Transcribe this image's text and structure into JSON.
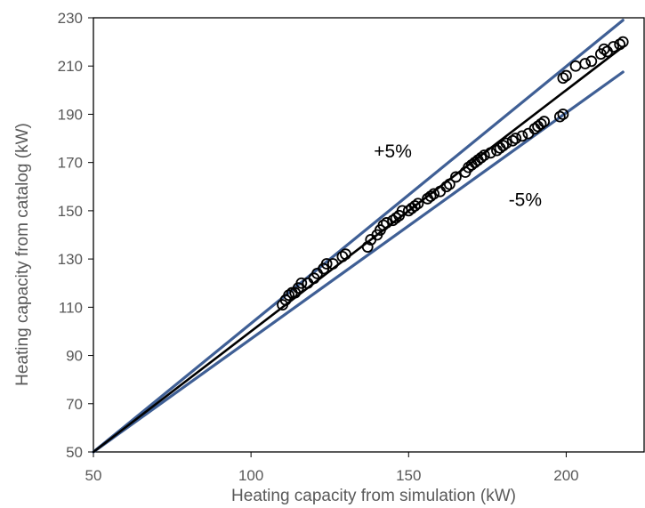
{
  "chart_data": {
    "type": "scatter",
    "title": "",
    "xlabel": "Heating capacity from simulation (kW)",
    "ylabel": "Heating capacity from catalog (kW)",
    "xlim": [
      50,
      225
    ],
    "ylim": [
      50,
      230
    ],
    "x_ticks": [
      "50",
      "100",
      "150",
      "200"
    ],
    "x_tick_values": [
      50,
      100,
      150,
      200
    ],
    "y_ticks": [
      "50",
      "70",
      "90",
      "110",
      "130",
      "150",
      "170",
      "190",
      "210",
      "230"
    ],
    "y_tick_values": [
      50,
      70,
      90,
      110,
      130,
      150,
      170,
      190,
      210,
      230
    ],
    "grid": false,
    "legend": "none",
    "annotations": [
      {
        "text": "+5%",
        "x": 145,
        "y": 172
      },
      {
        "text": "-5%",
        "x": 187,
        "y": 152
      }
    ],
    "reference_lines": [
      {
        "name": "+5%",
        "color": "#3f5f95",
        "points": [
          [
            50,
            50
          ],
          [
            218,
            229
          ]
        ]
      },
      {
        "name": "-5%",
        "color": "#3f5f95",
        "points": [
          [
            50,
            50
          ],
          [
            218,
            207.5
          ]
        ]
      }
    ],
    "fit_line": {
      "color": "#000000",
      "points": [
        [
          50,
          50
        ],
        [
          218,
          218
        ]
      ]
    },
    "series": [
      {
        "marker": "open-circle",
        "color": "#000000",
        "points": [
          [
            110,
            111
          ],
          [
            111,
            113
          ],
          [
            112,
            115
          ],
          [
            113,
            116
          ],
          [
            114,
            116
          ],
          [
            115,
            118
          ],
          [
            116,
            120
          ],
          [
            118,
            120
          ],
          [
            120,
            122
          ],
          [
            121,
            124
          ],
          [
            123,
            126
          ],
          [
            124,
            128
          ],
          [
            126,
            128
          ],
          [
            129,
            131
          ],
          [
            130,
            132
          ],
          [
            137,
            135
          ],
          [
            138,
            138
          ],
          [
            140,
            140
          ],
          [
            141,
            142
          ],
          [
            142,
            144
          ],
          [
            143,
            145
          ],
          [
            145,
            146
          ],
          [
            146,
            147
          ],
          [
            147,
            148
          ],
          [
            148,
            150
          ],
          [
            150,
            150
          ],
          [
            151,
            151
          ],
          [
            152,
            152
          ],
          [
            153,
            153
          ],
          [
            156,
            155
          ],
          [
            157,
            156
          ],
          [
            158,
            157
          ],
          [
            160,
            158
          ],
          [
            162,
            160
          ],
          [
            163,
            161
          ],
          [
            165,
            164
          ],
          [
            168,
            166
          ],
          [
            169,
            168
          ],
          [
            170,
            169
          ],
          [
            171,
            170
          ],
          [
            172,
            171
          ],
          [
            173,
            172
          ],
          [
            174,
            173
          ],
          [
            176,
            174
          ],
          [
            178,
            175
          ],
          [
            179,
            176
          ],
          [
            180,
            177
          ],
          [
            181,
            178
          ],
          [
            183,
            179
          ],
          [
            184,
            180
          ],
          [
            186,
            181
          ],
          [
            188,
            182
          ],
          [
            190,
            184
          ],
          [
            191,
            185
          ],
          [
            192,
            186
          ],
          [
            193,
            187
          ],
          [
            198,
            189
          ],
          [
            199,
            190
          ],
          [
            199,
            205
          ],
          [
            200,
            206
          ],
          [
            203,
            210
          ],
          [
            206,
            211
          ],
          [
            208,
            212
          ],
          [
            211,
            215
          ],
          [
            212,
            217
          ],
          [
            213,
            216
          ],
          [
            215,
            218
          ],
          [
            217,
            219
          ],
          [
            218,
            220
          ]
        ]
      }
    ]
  }
}
